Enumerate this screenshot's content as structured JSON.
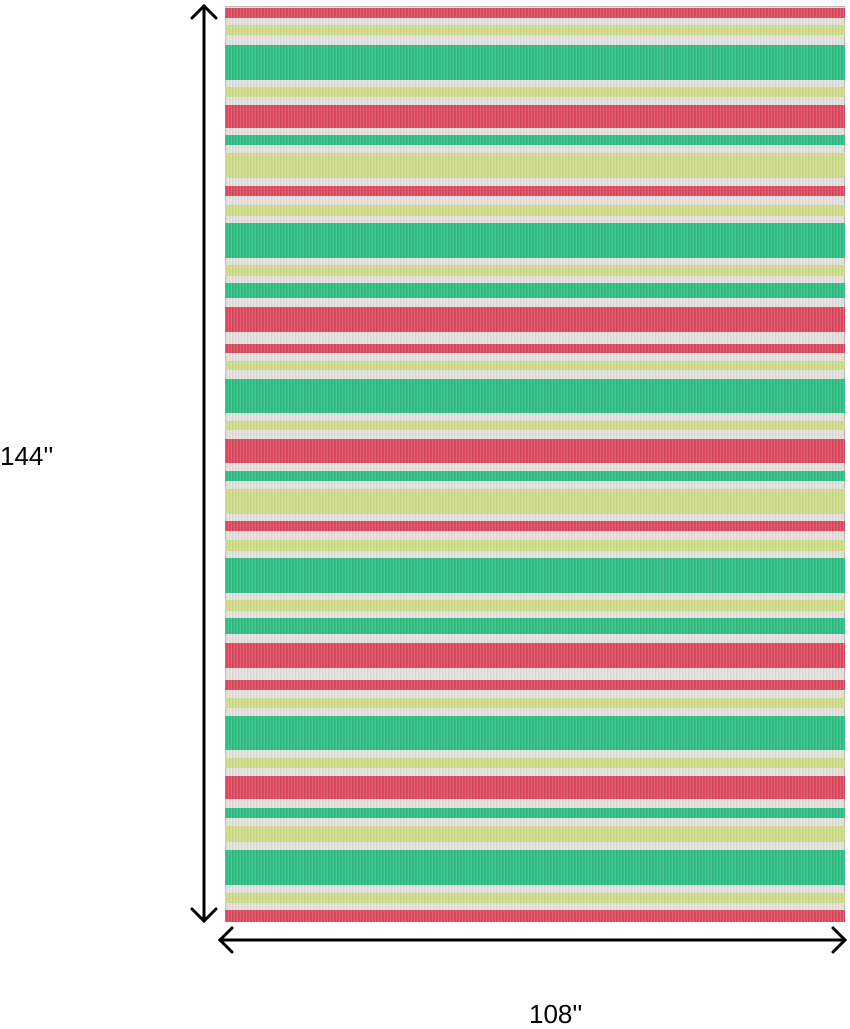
{
  "product": {
    "height_label": "144''",
    "width_label": "108''"
  },
  "colors": {
    "red": "#dd4a5f",
    "green": "#2fbf84",
    "lime": "#cfdc8a",
    "ivory": "#e4e1de",
    "arrow": "#000000"
  }
}
